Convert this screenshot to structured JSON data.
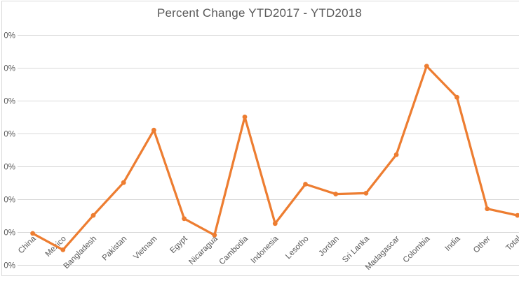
{
  "chart": {
    "title": "Percent Change YTD2017 - YTD2018"
  },
  "colors": {
    "series": "#ED7D31",
    "gridline": "#D9D9D9",
    "border": "#D9D9D9",
    "text": "#595959",
    "background": "#FFFFFF"
  },
  "y_axis": {
    "visible_tick_texts": [
      "0%",
      "0%",
      "0%",
      "0%",
      "0%",
      "0%",
      "0%",
      "0%"
    ]
  },
  "chart_data": {
    "type": "line",
    "title": "Percent Change YTD2017 - YTD2018",
    "categories": [
      "China",
      "Mexico",
      "Bangladesh",
      "Pakistan",
      "Vietnam",
      "Egypt",
      "Nicaragua",
      "Cambodia",
      "Indonesia",
      "Lesotho",
      "Jordan",
      "Sri Lanka",
      "Madagascar",
      "Colombia",
      "India",
      "Other",
      "Total"
    ],
    "values": [
      -1,
      -11,
      10,
      30,
      62,
      8,
      -2,
      70,
      5,
      29,
      23,
      23.5,
      47,
      101,
      82,
      14,
      10
    ],
    "xlabel": "",
    "ylabel": "",
    "ylim": [
      -20,
      120
    ],
    "ytick_step": 20,
    "ytick_labels_clipped_top_to_bottom": [
      "0%",
      "0%",
      "0%",
      "0%",
      "0%",
      "0%",
      "0%",
      "0%"
    ],
    "grid": true,
    "legend": false,
    "marker": "circle",
    "x_labels_rotated_degrees": 45
  }
}
